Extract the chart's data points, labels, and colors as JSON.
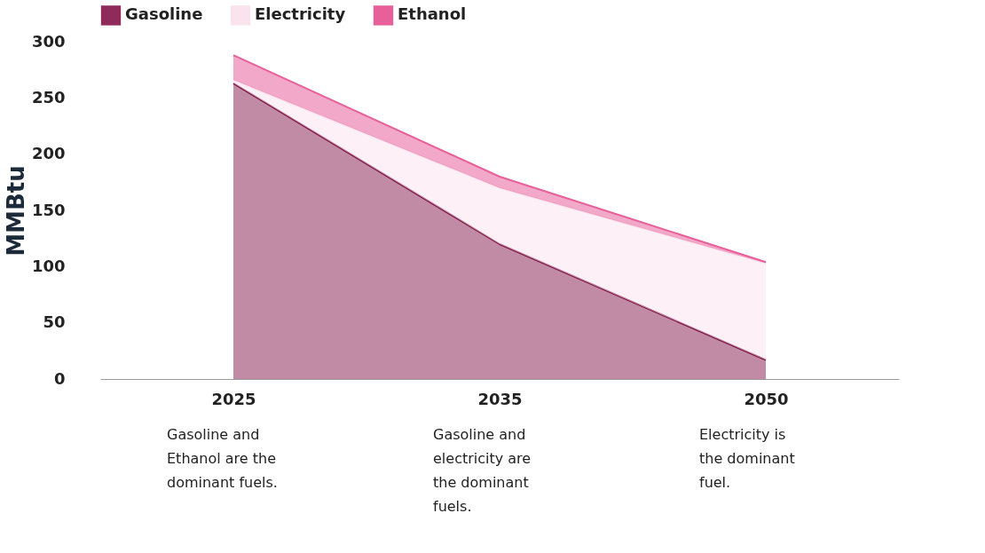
{
  "chart_data": {
    "type": "area",
    "stacked": true,
    "ylabel": "MMBtu",
    "categories": [
      "2025",
      "2035",
      "2050"
    ],
    "series": [
      {
        "name": "Gasoline",
        "color": "#8e2b5b",
        "values": [
          263,
          120,
          17
        ]
      },
      {
        "name": "Electricity",
        "color": "#fbe3ee",
        "values": [
          3,
          50,
          86
        ]
      },
      {
        "name": "Ethanol",
        "color": "#e8609a",
        "values": [
          22,
          10,
          1
        ]
      }
    ],
    "ylim": [
      0,
      300
    ],
    "yticks": [
      0,
      50,
      100,
      150,
      200,
      250,
      300
    ],
    "grid": false,
    "legend": "top",
    "annotations": [
      "Gasoline and\nEthanol are the\ndominant fuels.",
      "Gasoline and\nelectricity are\nthe dominant\nfuels.",
      "Electricity is\nthe dominant\nfuel."
    ]
  }
}
